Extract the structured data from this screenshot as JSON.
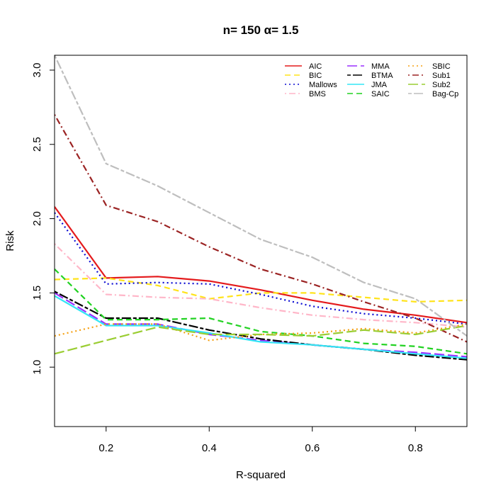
{
  "chart_data": {
    "type": "line",
    "title": "n= 150 α= 1.5",
    "xlabel": "R-squared",
    "ylabel": "Risk",
    "xlim": [
      0.1,
      0.9
    ],
    "ylim": [
      0.6,
      3.1
    ],
    "x_ticks": [
      0.2,
      0.4,
      0.6,
      0.8
    ],
    "x_tick_labels": [
      "0.2",
      "0.4",
      "0.6",
      "0.8"
    ],
    "y_ticks": [
      1.0,
      1.5,
      2.0,
      2.5,
      3.0
    ],
    "y_tick_labels": [
      "1.0",
      "1.5",
      "2.0",
      "2.5",
      "3.0"
    ],
    "legend_position": "top-right",
    "x": [
      0.1,
      0.2,
      0.3,
      0.4,
      0.5,
      0.6,
      0.7,
      0.8,
      0.9
    ],
    "series": [
      {
        "name": "AIC",
        "color": "#e41a1c",
        "dash": "solid",
        "width": 2.2,
        "values": [
          2.08,
          1.6,
          1.61,
          1.58,
          1.52,
          1.45,
          1.39,
          1.35,
          1.3
        ]
      },
      {
        "name": "BIC",
        "color": "#ffe31a",
        "dash": "dashed",
        "width": 2.2,
        "values": [
          1.59,
          1.6,
          1.55,
          1.46,
          1.5,
          1.5,
          1.47,
          1.44,
          1.45
        ]
      },
      {
        "name": "Mallows",
        "color": "#0a0ad2",
        "dash": "dotted",
        "width": 2.2,
        "values": [
          2.04,
          1.56,
          1.57,
          1.56,
          1.49,
          1.41,
          1.36,
          1.33,
          1.29
        ]
      },
      {
        "name": "BMS",
        "color": "#ffb6c8",
        "dash": "dotdash",
        "width": 2.2,
        "values": [
          1.83,
          1.49,
          1.47,
          1.46,
          1.4,
          1.35,
          1.32,
          1.3,
          1.27
        ]
      },
      {
        "name": "MMA",
        "color": "#9b30ff",
        "dash": "longdash",
        "width": 2.2,
        "values": [
          1.5,
          1.29,
          1.29,
          1.22,
          1.18,
          1.15,
          1.12,
          1.1,
          1.07
        ]
      },
      {
        "name": "BTMA",
        "color": "#000000",
        "dash": "twodash",
        "width": 2.2,
        "values": [
          1.51,
          1.33,
          1.33,
          1.25,
          1.19,
          1.15,
          1.12,
          1.08,
          1.05
        ]
      },
      {
        "name": "JMA",
        "color": "#33e5f5",
        "dash": "solid",
        "width": 2.2,
        "values": [
          1.48,
          1.28,
          1.28,
          1.23,
          1.17,
          1.15,
          1.12,
          1.09,
          1.06
        ]
      },
      {
        "name": "SAIC",
        "color": "#22d222",
        "dash": "dashed",
        "width": 2.2,
        "values": [
          1.66,
          1.32,
          1.32,
          1.33,
          1.24,
          1.21,
          1.16,
          1.14,
          1.09
        ]
      },
      {
        "name": "SBIC",
        "color": "#f5a012",
        "dash": "dotted",
        "width": 2.2,
        "values": [
          1.21,
          1.29,
          1.29,
          1.18,
          1.22,
          1.23,
          1.26,
          1.23,
          1.29
        ]
      },
      {
        "name": "Sub1",
        "color": "#9b2323",
        "dash": "dotdash",
        "width": 2.2,
        "values": [
          2.7,
          2.09,
          1.98,
          1.81,
          1.66,
          1.56,
          1.44,
          1.33,
          1.17
        ]
      },
      {
        "name": "Sub2",
        "color": "#9acd32",
        "dash": "longdash",
        "width": 2.2,
        "values": [
          1.09,
          1.18,
          1.27,
          1.22,
          1.22,
          1.21,
          1.25,
          1.22,
          1.28
        ]
      },
      {
        "name": "Bag-Cp",
        "color": "#bebebe",
        "dash": "twodash",
        "width": 2.2,
        "values": [
          3.1,
          2.37,
          2.22,
          2.04,
          1.86,
          1.74,
          1.57,
          1.46,
          1.21
        ]
      }
    ]
  }
}
